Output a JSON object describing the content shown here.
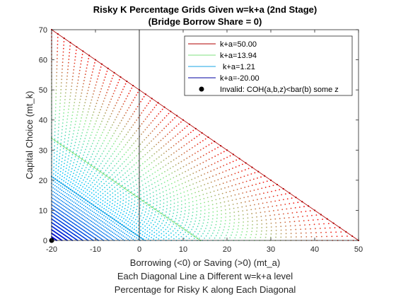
{
  "chart_data": {
    "type": "scatter",
    "title": "Risky K Percentage Grids Given w=k+a (2nd Stage)",
    "subtitle": "(Bridge Borrow Share = 0)",
    "xlabel": "Borrowing (<0) or Saving (>0) (mt_a)",
    "xlabel_line2": "Each Diagonal Line a Different w=k+a level",
    "xlabel_line3": "Percentage for Risky K along Each Diagonal",
    "ylabel": "Capital Choice (mt_k)",
    "xlim": [
      -20,
      50
    ],
    "ylim": [
      0,
      70
    ],
    "xticks": [
      "-20",
      "-10",
      "0",
      "10",
      "20",
      "30",
      "40",
      "50"
    ],
    "yticks": [
      "0",
      "10",
      "20",
      "30",
      "40",
      "50",
      "60",
      "70"
    ],
    "vline_x": 0,
    "grid": false,
    "legend_position": "top-right",
    "diagonals": {
      "w_min": -20,
      "w_max": 50,
      "count": 60,
      "points_per_line": 50,
      "color_scale": [
        "#0000cd",
        "#00bfff",
        "#90ee90",
        "#ff0000"
      ]
    },
    "series": [
      {
        "name": "k+a=50.00",
        "w": 50.0,
        "color": "#b00000"
      },
      {
        "name": "k+a=13.94",
        "w": 13.94,
        "color": "#7fe07f"
      },
      {
        "name": "k+a=1.21",
        "w": 1.21,
        "color": "#19a6e6"
      },
      {
        "name": "k+a=-20.00",
        "w": -20.0,
        "color": "#0000a0"
      }
    ],
    "invalid": {
      "name": "Invalid: COH(a,b,z)<bar(b) some z",
      "x": -20,
      "y": 0,
      "color": "#000000"
    }
  }
}
